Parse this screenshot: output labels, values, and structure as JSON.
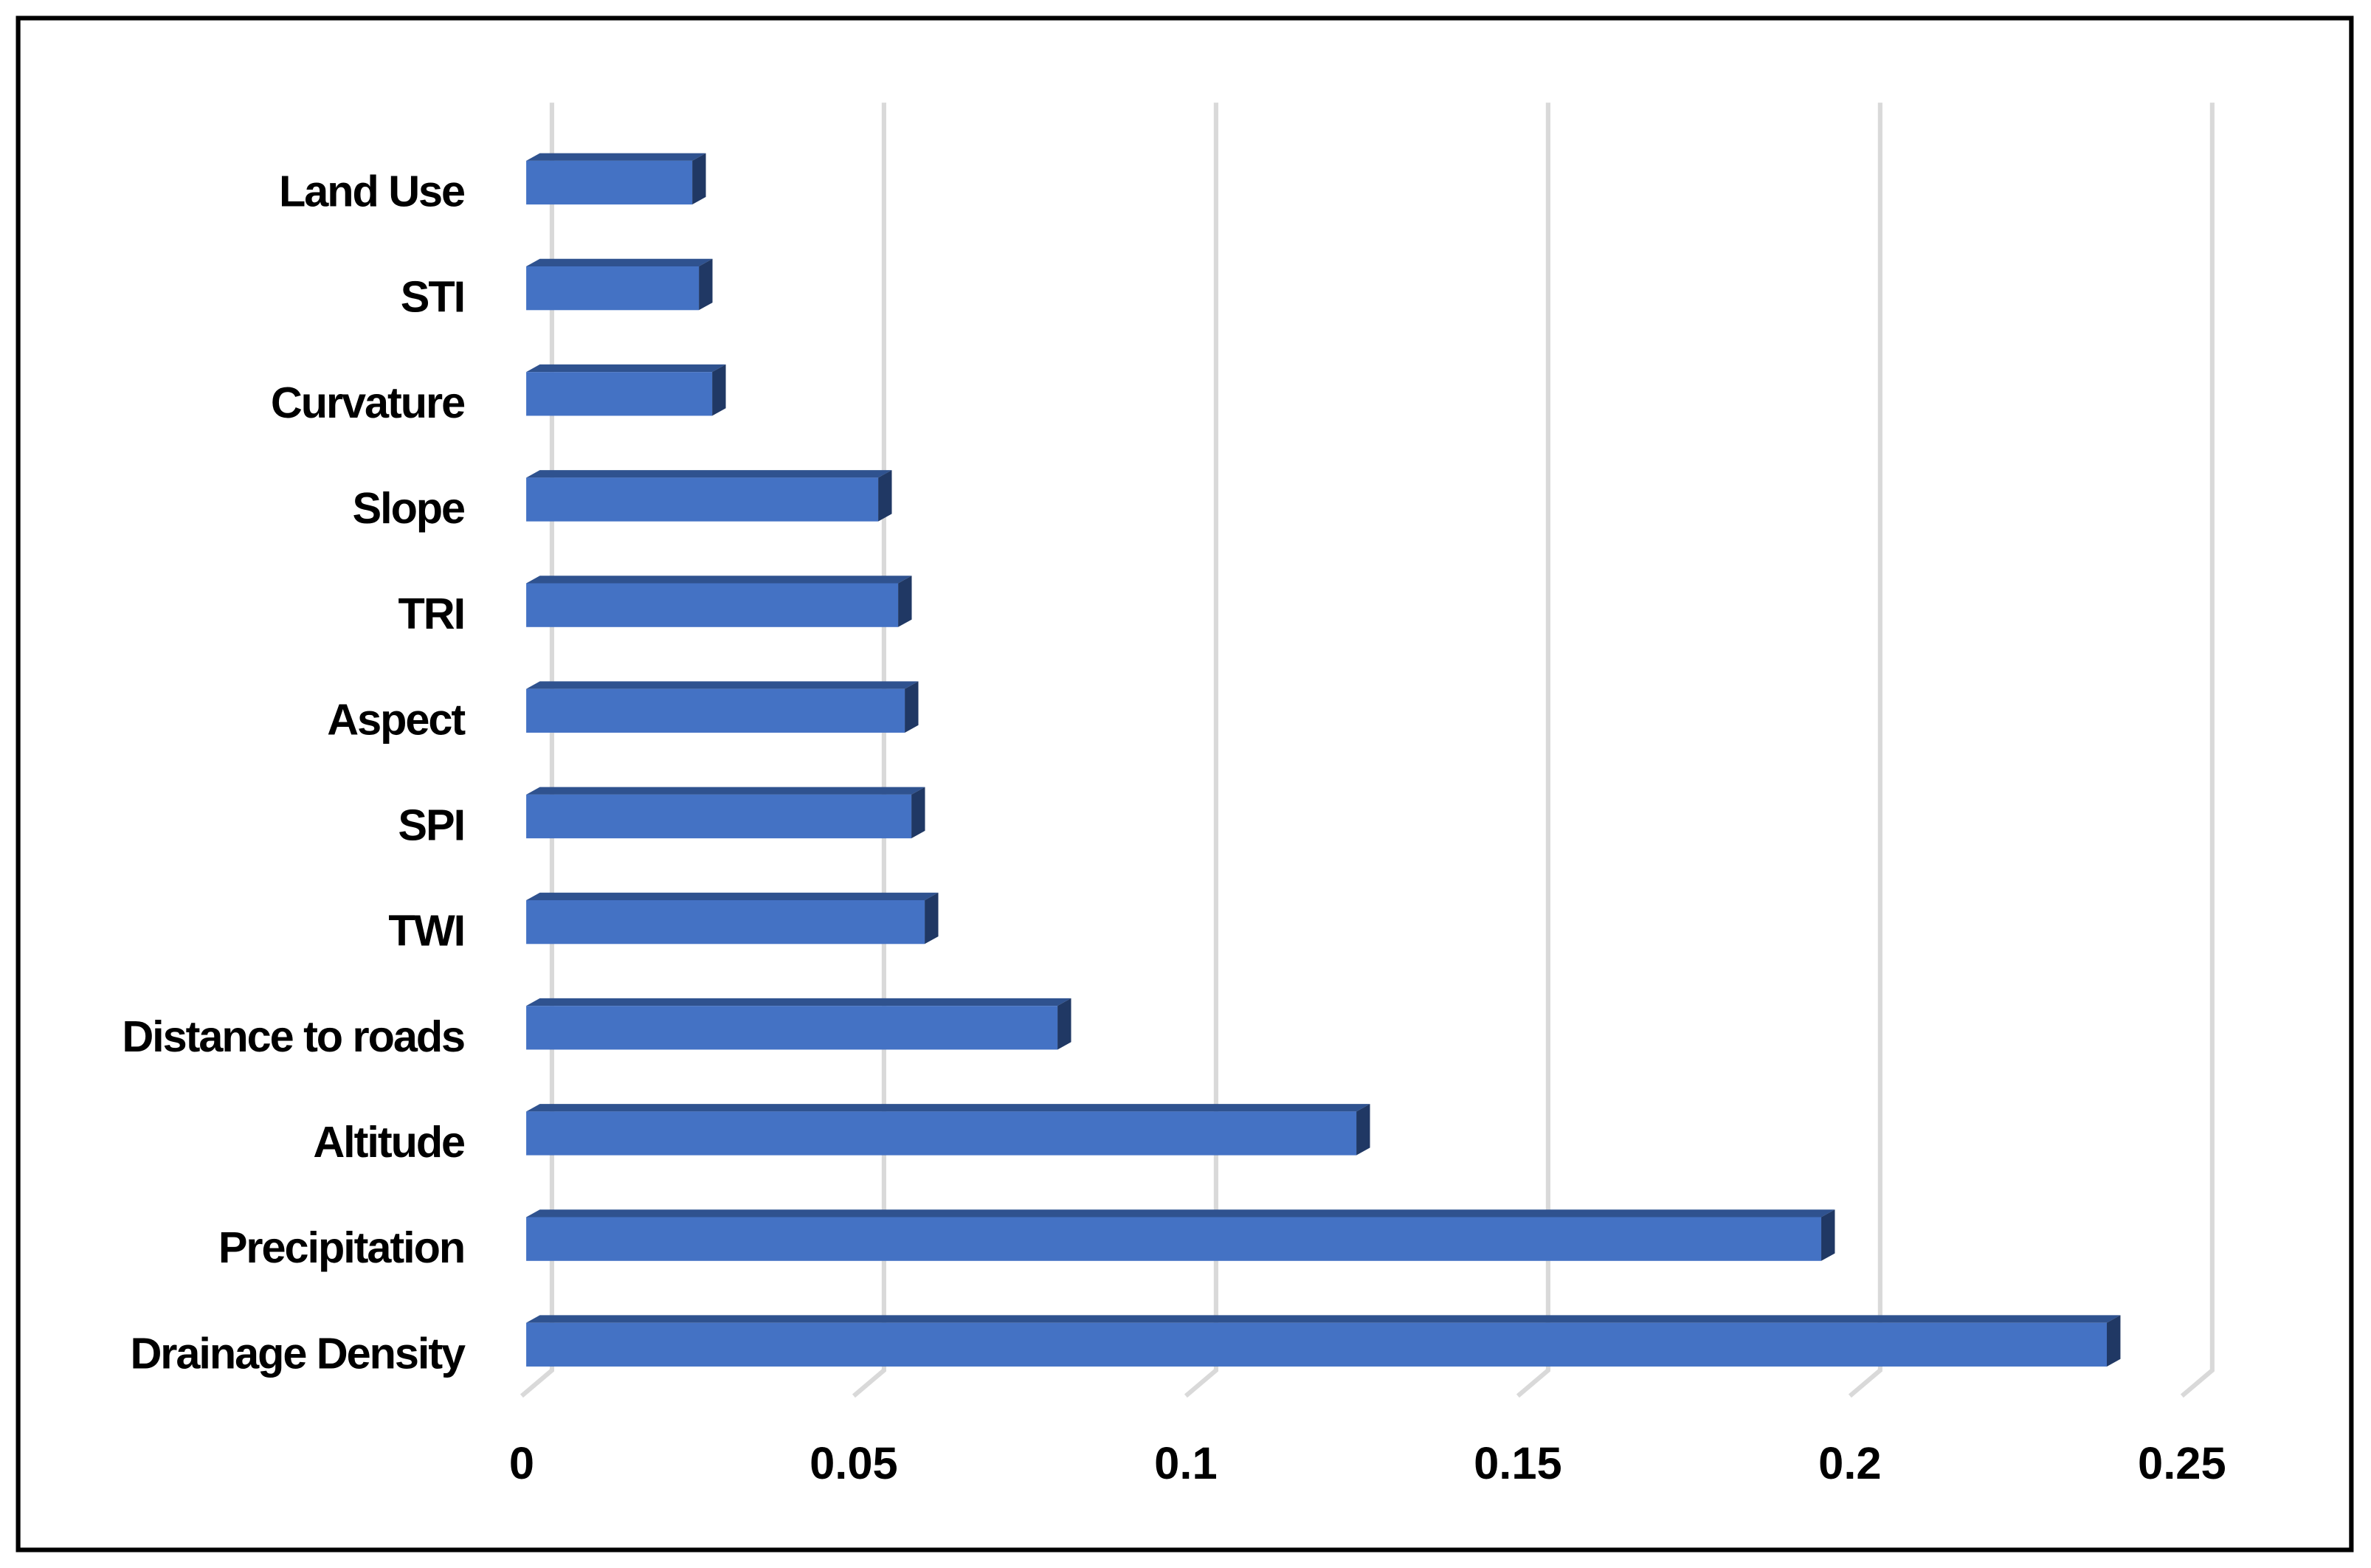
{
  "chart_data": {
    "type": "bar",
    "orientation": "horizontal",
    "categories": [
      "Land Use",
      "STI",
      "Curvature",
      "Slope",
      "TRI",
      "Aspect",
      "SPI",
      "TWI",
      "Distance to roads",
      "Altitude",
      "Precipitation",
      "Drainage Density"
    ],
    "values": [
      0.025,
      0.026,
      0.028,
      0.053,
      0.056,
      0.057,
      0.058,
      0.06,
      0.08,
      0.125,
      0.195,
      0.238
    ],
    "color": "#4472c4",
    "xlim": [
      0,
      0.25
    ],
    "xticks": [
      0,
      0.05,
      0.1,
      0.15,
      0.2,
      0.25
    ],
    "grid": true
  }
}
